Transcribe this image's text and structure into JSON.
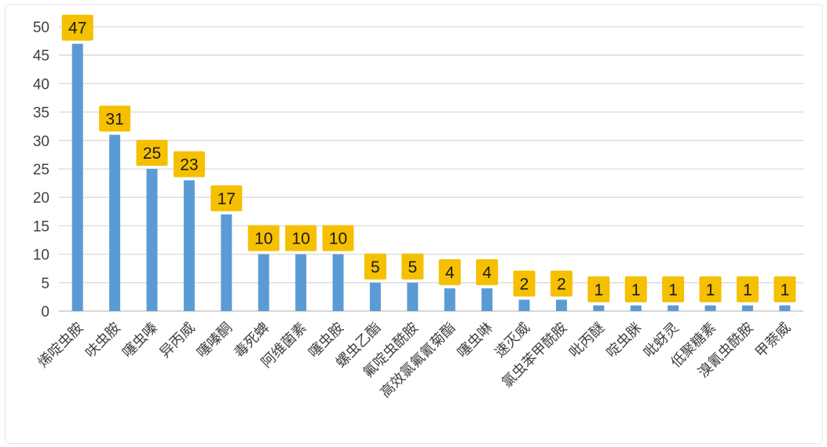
{
  "chart_data": {
    "type": "bar",
    "title": "",
    "xlabel": "",
    "ylabel": "",
    "ylim": [
      0,
      50
    ],
    "yticks": [
      0,
      5,
      10,
      15,
      20,
      25,
      30,
      35,
      40,
      45,
      50
    ],
    "grid": true,
    "legend": "none",
    "categories": [
      "烯啶虫胺",
      "呋虫胺",
      "噻虫嗪",
      "异丙威",
      "噻嗪酮",
      "毒死蜱",
      "阿维菌素",
      "噻虫胺",
      "螺虫乙酯",
      "氟啶虫酰胺",
      "高效氯氟氰菊酯",
      "噻虫啉",
      "速灭威",
      "氯虫苯甲酰胺",
      "吡丙醚",
      "啶虫脒",
      "吡蚜灵",
      "低聚糖素",
      "溴氰虫酰胺",
      "甲萘威"
    ],
    "values": [
      47,
      31,
      25,
      23,
      17,
      10,
      10,
      10,
      5,
      5,
      4,
      4,
      2,
      2,
      1,
      1,
      1,
      1,
      1,
      1
    ],
    "colors": {
      "bar": "#5b9bd5",
      "label_box": "#f5c000",
      "gridline": "#d9d9d9",
      "axis": "#bfbfbf"
    }
  }
}
